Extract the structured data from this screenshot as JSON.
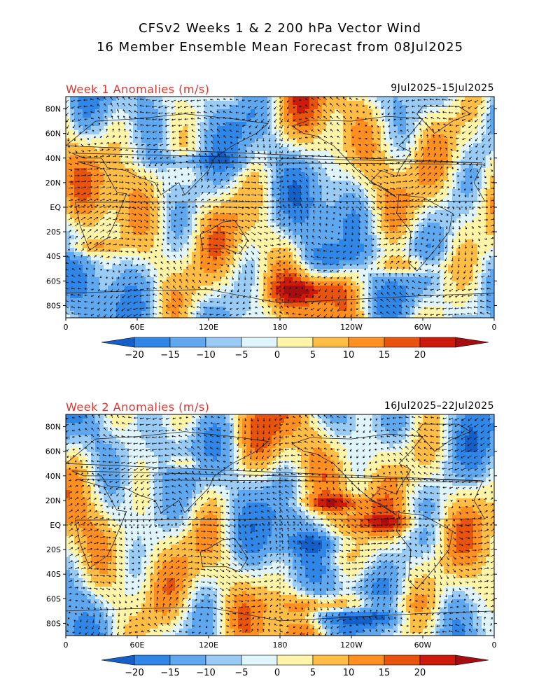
{
  "header": {
    "title_line1": "CFSv2 Weeks 1 & 2 200 hPa Vector Wind",
    "title_line2": "16 Member Ensemble Mean Forecast from 08Jul2025"
  },
  "panels": [
    {
      "label": "Week 1 Anomalies (m/s)",
      "date_range": "9Jul2025–15Jul2025"
    },
    {
      "label": "Week 2 Anomalies (m/s)",
      "date_range": "16Jul2025–22Jul2025"
    }
  ],
  "axes": {
    "lat_labels": [
      "80N",
      "60N",
      "40N",
      "20N",
      "EQ",
      "20S",
      "40S",
      "60S",
      "80S"
    ],
    "lat_values": [
      80,
      60,
      40,
      20,
      0,
      -20,
      -40,
      -60,
      -80
    ],
    "lon_labels": [
      "0",
      "60E",
      "120E",
      "180",
      "120W",
      "60W",
      "0"
    ],
    "lon_values": [
      0,
      60,
      120,
      180,
      240,
      300,
      360
    ]
  },
  "colorbar": {
    "labels": [
      "−20",
      "−15",
      "−10",
      "−5",
      "0",
      "5",
      "10",
      "15",
      "20"
    ],
    "colors": [
      "#1560c8",
      "#2f86e6",
      "#5fa8f0",
      "#99cbf5",
      "#dff4fb",
      "#fff4a8",
      "#ffbd45",
      "#ff8f20",
      "#e8530e",
      "#cc1a0c",
      "#a50e10"
    ]
  }
}
